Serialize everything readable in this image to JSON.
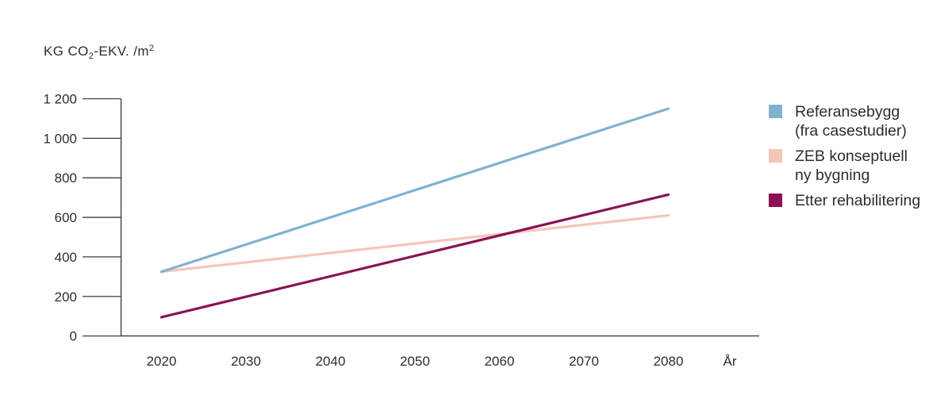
{
  "page": {
    "background": "#ffffff",
    "text_color": "#2d2d2d",
    "axis_color": "#3f3f3f"
  },
  "chart_data": {
    "type": "line",
    "title": "",
    "y_axis": {
      "title": {
        "pre": "KG CO",
        "sub": "2",
        "mid": "-EKV. /m",
        "sup": "2"
      },
      "range": [
        0,
        1200
      ],
      "tick_step": 200,
      "ticks": [
        {
          "value": 0,
          "label": "0"
        },
        {
          "value": 200,
          "label": "200"
        },
        {
          "value": 400,
          "label": "400"
        },
        {
          "value": 600,
          "label": "600"
        },
        {
          "value": 800,
          "label": "800"
        },
        {
          "value": 1000,
          "label": "1 000"
        },
        {
          "value": 1200,
          "label": "1 200"
        }
      ]
    },
    "x_axis": {
      "label": "År",
      "range": [
        2020,
        2080
      ],
      "tick_step": 10,
      "ticks": [
        {
          "value": 2020,
          "label": "2020"
        },
        {
          "value": 2030,
          "label": "2030"
        },
        {
          "value": 2040,
          "label": "2040"
        },
        {
          "value": 2050,
          "label": "2050"
        },
        {
          "value": 2060,
          "label": "2060"
        },
        {
          "value": 2070,
          "label": "2070"
        },
        {
          "value": 2080,
          "label": "2080"
        }
      ]
    },
    "grid": false,
    "legend_position": "right",
    "series": [
      {
        "name": "Referansebygg (fra casestudier)",
        "color": "#80b2cf",
        "points": [
          {
            "x": 2020,
            "y": 325
          },
          {
            "x": 2080,
            "y": 1150
          }
        ]
      },
      {
        "name": "ZEB konseptuell ny bygning",
        "color": "#f6c5b9",
        "points": [
          {
            "x": 2020,
            "y": 325
          },
          {
            "x": 2080,
            "y": 610
          }
        ]
      },
      {
        "name": "Etter rehabilitering",
        "color": "#8c1154",
        "points": [
          {
            "x": 2020,
            "y": 95
          },
          {
            "x": 2080,
            "y": 715
          }
        ]
      }
    ],
    "legend": {
      "items": [
        {
          "line1": "Referansebygg",
          "line2": "(fra casestudier)"
        },
        {
          "line1": "ZEB konseptuell",
          "line2": "ny bygning"
        },
        {
          "line1": "Etter rehabilitering",
          "line2": ""
        }
      ]
    }
  }
}
